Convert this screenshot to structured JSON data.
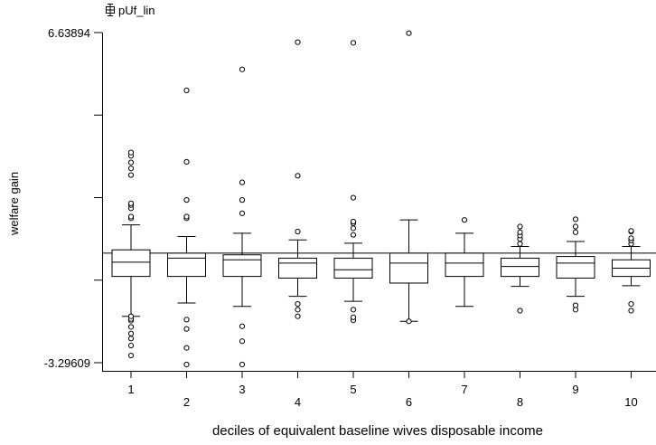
{
  "chart_data": {
    "type": "boxplot",
    "legend_label": "pUf_lin",
    "ylabel": "welfare gain",
    "xlabel": "deciles of equivalent baseline wives disposable income",
    "ylim": [
      -3.29609,
      6.63894
    ],
    "y_tick_labels": [
      "6.63894",
      "-3.29609"
    ],
    "reference_line": 0.0,
    "categories": [
      "1",
      "2",
      "3",
      "4",
      "5",
      "6",
      "7",
      "8",
      "9",
      "10"
    ],
    "boxes": [
      {
        "category": "1",
        "whisker_low": -1.9,
        "q1": -0.7,
        "median": -0.27,
        "q3": 0.1,
        "whisker_high": 0.85,
        "outliers": [
          -3.08,
          -2.78,
          -2.57,
          -2.42,
          -2.22,
          -2.03,
          -1.98,
          -1.9,
          1.05,
          1.1,
          1.35,
          1.45,
          1.5,
          2.35,
          2.55,
          2.73,
          2.93,
          3.03
        ]
      },
      {
        "category": "2",
        "whisker_low": -1.5,
        "q1": -0.7,
        "median": -0.15,
        "q3": 0.0,
        "whisker_high": 0.5,
        "outliers": [
          -3.35,
          -2.85,
          -2.28,
          -2.0,
          1.05,
          1.1,
          1.6,
          2.75,
          4.9
        ]
      },
      {
        "category": "3",
        "whisker_low": -1.6,
        "q1": -0.7,
        "median": -0.2,
        "q3": -0.05,
        "whisker_high": 0.6,
        "outliers": [
          -3.35,
          -2.65,
          -2.2,
          1.2,
          1.6,
          2.13,
          5.53
        ]
      },
      {
        "category": "4",
        "whisker_low": -1.3,
        "q1": -0.75,
        "median": -0.3,
        "q3": -0.15,
        "whisker_high": 0.4,
        "outliers": [
          -1.9,
          -1.7,
          -1.53,
          0.65,
          2.33,
          6.35
        ]
      },
      {
        "category": "5",
        "whisker_low": -1.45,
        "q1": -0.75,
        "median": -0.5,
        "q3": -0.15,
        "whisker_high": 0.3,
        "outliers": [
          -2.02,
          -1.93,
          -1.7,
          0.55,
          0.75,
          0.9,
          0.95,
          1.67,
          6.33
        ]
      },
      {
        "category": "6",
        "whisker_low": -2.05,
        "q1": -0.9,
        "median": -0.3,
        "q3": 0.0,
        "whisker_high": 1.0,
        "outliers": [
          -2.05,
          6.62
        ]
      },
      {
        "category": "7",
        "whisker_low": -1.6,
        "q1": -0.7,
        "median": -0.3,
        "q3": 0.0,
        "whisker_high": 0.6,
        "outliers": [
          1.0
        ]
      },
      {
        "category": "8",
        "whisker_low": -1.0,
        "q1": -0.7,
        "median": -0.4,
        "q3": -0.15,
        "whisker_high": 0.2,
        "outliers": [
          -1.73,
          0.28,
          0.43,
          0.53,
          0.63,
          0.8
        ]
      },
      {
        "category": "9",
        "whisker_low": -1.3,
        "q1": -0.75,
        "median": -0.3,
        "q3": -0.1,
        "whisker_high": 0.35,
        "outliers": [
          -1.7,
          -1.57,
          0.63,
          0.8,
          1.02
        ]
      },
      {
        "category": "10",
        "whisker_low": -0.98,
        "q1": -0.7,
        "median": -0.45,
        "q3": -0.2,
        "whisker_high": 0.2,
        "outliers": [
          -1.73,
          -1.53,
          0.28,
          0.38,
          0.45,
          0.65,
          0.67
        ]
      }
    ]
  }
}
